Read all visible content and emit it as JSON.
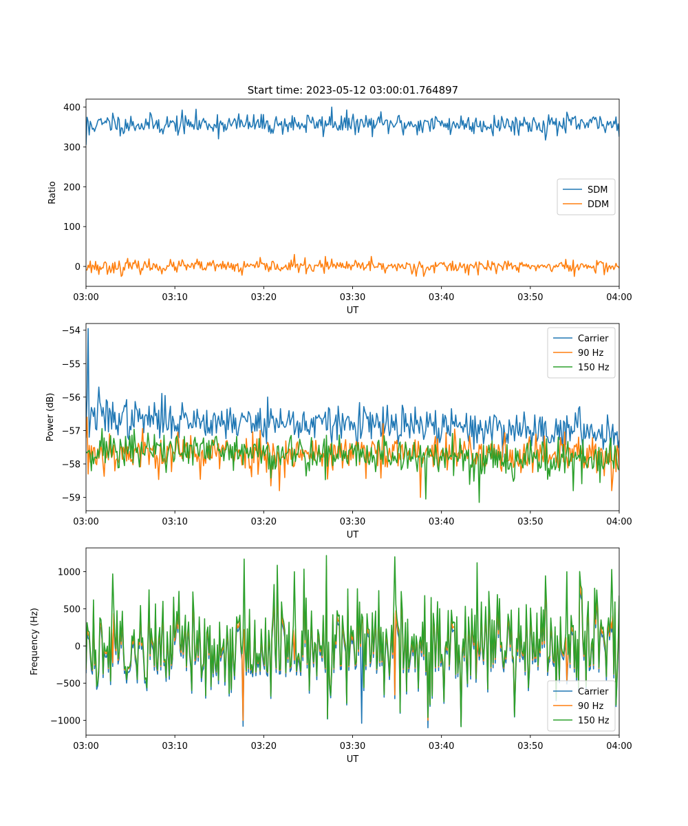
{
  "figure_title": "Start time: 2023-05-12 03:00:01.764897",
  "chart_data": [
    {
      "type": "line",
      "title": "Start time: 2023-05-12 03:00:01.764897",
      "xlabel": "UT",
      "ylabel": "Ratio",
      "x_range": [
        "03:00",
        "04:00"
      ],
      "xticks": [
        "03:00",
        "03:10",
        "03:20",
        "03:30",
        "03:40",
        "03:50",
        "04:00"
      ],
      "ylim": [
        -50,
        420
      ],
      "yticks": [
        0,
        100,
        200,
        300,
        400
      ],
      "ytick_labels": [
        "0",
        "100",
        "200",
        "300",
        "400"
      ],
      "legend_loc": "center-right",
      "grid": false,
      "series": [
        {
          "name": "SDM",
          "color": "#1f77b4",
          "base": 357,
          "noise": 13,
          "seed": 11,
          "spikes": [
            [
              0.0,
              305
            ],
            [
              0.4,
              330
            ],
            [
              3.0,
              385
            ],
            [
              27.6,
              400
            ],
            [
              35.7,
              330
            ],
            [
              54.0,
              335
            ]
          ]
        },
        {
          "name": "DDM",
          "color": "#ff7f0e",
          "base": 0,
          "noise": 8,
          "seed": 23,
          "spikes": [
            [
              1.5,
              -20
            ],
            [
              4.0,
              -25
            ],
            [
              17.6,
              -22
            ],
            [
              23.4,
              30
            ],
            [
              26.9,
              25
            ],
            [
              32.1,
              25
            ],
            [
              38.0,
              -25
            ],
            [
              55.0,
              -25
            ]
          ]
        }
      ]
    },
    {
      "type": "line",
      "xlabel": "UT",
      "ylabel": "Power (dB)",
      "x_range": [
        "03:00",
        "04:00"
      ],
      "xticks": [
        "03:00",
        "03:10",
        "03:20",
        "03:30",
        "03:40",
        "03:50",
        "04:00"
      ],
      "ylim": [
        -59.4,
        -53.8
      ],
      "yticks": [
        -59,
        -58,
        -57,
        -56,
        -55,
        -54
      ],
      "ytick_labels": [
        "−59",
        "−58",
        "−57",
        "−56",
        "−55",
        "−54"
      ],
      "legend_loc": "top-right",
      "grid": false,
      "series": [
        {
          "name": "Carrier",
          "color": "#1f77b4",
          "base": -56.6,
          "trend": -0.45,
          "noise": 0.28,
          "seed": 37,
          "spikes": [
            [
              0.2,
              -57.0
            ],
            [
              0.25,
              -53.95
            ],
            [
              0.32,
              -57.2
            ],
            [
              1.5,
              -55.7
            ],
            [
              20.5,
              -56.0
            ]
          ]
        },
        {
          "name": "90 Hz",
          "color": "#ff7f0e",
          "base": -57.65,
          "trend": -0.1,
          "noise": 0.3,
          "seed": 53,
          "spikes": [
            [
              0.1,
              -56.6
            ],
            [
              0.3,
              -58.3
            ],
            [
              21.8,
              -58.8
            ],
            [
              37.6,
              -59.0
            ],
            [
              59.2,
              -58.8
            ]
          ]
        },
        {
          "name": "150 Hz",
          "color": "#2ca02c",
          "base": -57.55,
          "trend": -0.35,
          "noise": 0.3,
          "seed": 71,
          "spikes": [
            [
              38.2,
              -59.05
            ],
            [
              44.3,
              -59.15
            ],
            [
              54.8,
              -58.8
            ]
          ]
        }
      ]
    },
    {
      "type": "line",
      "xlabel": "UT",
      "ylabel": "Frequency (Hz)",
      "x_range": [
        "03:00",
        "04:00"
      ],
      "xticks": [
        "03:00",
        "03:10",
        "03:20",
        "03:30",
        "03:40",
        "03:50",
        "04:00"
      ],
      "ylim": [
        -1200,
        1320
      ],
      "yticks": [
        -1000,
        -500,
        0,
        500,
        1000
      ],
      "ytick_labels": [
        "−1000",
        "−500",
        "0",
        "500",
        "1000"
      ],
      "legend_loc": "bottom-right",
      "grid": false,
      "series": [
        {
          "name": "Carrier",
          "color": "#1f77b4",
          "base": -50,
          "noise": 330,
          "seed": 89,
          "lag": 0,
          "spikes": [
            [
              17.7,
              -1080
            ],
            [
              38.5,
              -1100
            ],
            [
              31.0,
              -1040
            ]
          ]
        },
        {
          "name": "90 Hz",
          "color": "#ff7f0e",
          "base": 0,
          "noise": 330,
          "seed": 89,
          "lag": 0.4,
          "spikes": [
            [
              17.7,
              -1000
            ],
            [
              38.5,
              -1000
            ]
          ]
        },
        {
          "name": "150 Hz",
          "color": "#2ca02c",
          "base": 40,
          "noise": 360,
          "seed": 89,
          "lag": 0.8,
          "spikes": [
            [
              17.8,
              1170
            ],
            [
              34.8,
              1200
            ],
            [
              23.5,
              1000
            ],
            [
              3.0,
              970
            ],
            [
              44.0,
              1120
            ],
            [
              54.1,
              1000
            ],
            [
              59.2,
              1030
            ],
            [
              38.5,
              -960
            ]
          ]
        }
      ]
    }
  ]
}
